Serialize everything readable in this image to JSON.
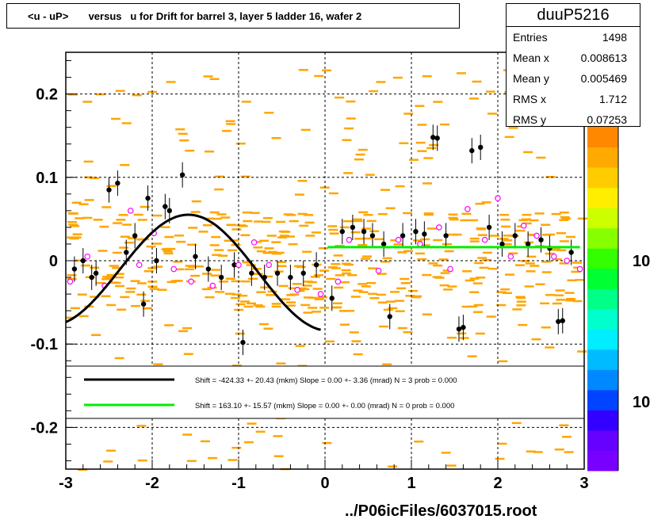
{
  "title": "<u - uP>       versus   u for Drift for barrel 3, layer 5 ladder 16, wafer 2",
  "stats": {
    "name": "duuP5216",
    "rows": [
      {
        "label": "Entries",
        "value": "1498"
      },
      {
        "label": "Mean x",
        "value": "0.008613"
      },
      {
        "label": "Mean y",
        "value": "0.005469"
      },
      {
        "label": "RMS x",
        "value": "1.712"
      },
      {
        "label": "RMS y",
        "value": "0.07253"
      }
    ]
  },
  "footer": "../P06icFiles/6037015.root",
  "colors": {
    "hist": "#ffa500",
    "profile": "#000000",
    "open_marker": "#ff00ff",
    "fit_left": "#000000",
    "fit_right": "#00ee00"
  },
  "chart_data": {
    "type": "scatter",
    "xlim": [
      -3,
      3
    ],
    "ylim": [
      -0.25,
      0.25
    ],
    "x_ticks": [
      "-3",
      "-2",
      "-1",
      "0",
      "1",
      "2",
      "3"
    ],
    "y_ticks": [
      "-0.2",
      "-0.1",
      "0",
      "0.1",
      "0.2"
    ],
    "grid": true,
    "palette_labels": [
      "10",
      "10"
    ],
    "legend": [
      {
        "text": "Shift =  -424.33 +- 20.43 (mkm) Slope =     0.00 +- 3.36 (mrad)  N = 3 prob = 0.000"
      },
      {
        "text": "Shift =   163.10 +- 15.57 (mkm) Slope =     0.00 +- 0.00 (mrad)  N = 0 prob = 0.000"
      }
    ],
    "profile_points": [
      {
        "x": -2.9,
        "y": -0.01
      },
      {
        "x": -2.8,
        "y": 0.0
      },
      {
        "x": -2.7,
        "y": -0.02
      },
      {
        "x": -2.65,
        "y": -0.015
      },
      {
        "x": -2.5,
        "y": 0.085
      },
      {
        "x": -2.4,
        "y": 0.093
      },
      {
        "x": -2.3,
        "y": 0.01
      },
      {
        "x": -2.2,
        "y": 0.03
      },
      {
        "x": -2.1,
        "y": -0.052
      },
      {
        "x": -2.05,
        "y": 0.075
      },
      {
        "x": -1.95,
        "y": 0.0
      },
      {
        "x": -1.85,
        "y": 0.065
      },
      {
        "x": -1.8,
        "y": 0.06
      },
      {
        "x": -1.65,
        "y": 0.103
      },
      {
        "x": -1.5,
        "y": 0.005
      },
      {
        "x": -1.35,
        "y": -0.01
      },
      {
        "x": -1.2,
        "y": -0.02
      },
      {
        "x": -1.05,
        "y": -0.005
      },
      {
        "x": -0.95,
        "y": -0.098
      },
      {
        "x": -0.85,
        "y": -0.015
      },
      {
        "x": -0.7,
        "y": -0.02
      },
      {
        "x": -0.55,
        "y": -0.015
      },
      {
        "x": -0.4,
        "y": -0.02
      },
      {
        "x": -0.25,
        "y": -0.015
      },
      {
        "x": -0.1,
        "y": -0.005
      },
      {
        "x": 0.08,
        "y": -0.045
      },
      {
        "x": 0.2,
        "y": 0.035
      },
      {
        "x": 0.32,
        "y": 0.04
      },
      {
        "x": 0.45,
        "y": 0.035
      },
      {
        "x": 0.55,
        "y": 0.03
      },
      {
        "x": 0.68,
        "y": 0.02
      },
      {
        "x": 0.75,
        "y": -0.067
      },
      {
        "x": 0.9,
        "y": 0.03
      },
      {
        "x": 1.05,
        "y": 0.035
      },
      {
        "x": 1.15,
        "y": 0.032
      },
      {
        "x": 1.25,
        "y": 0.148
      },
      {
        "x": 1.3,
        "y": 0.147
      },
      {
        "x": 1.4,
        "y": 0.03
      },
      {
        "x": 1.55,
        "y": -0.082
      },
      {
        "x": 1.6,
        "y": -0.08
      },
      {
        "x": 1.7,
        "y": 0.132
      },
      {
        "x": 1.8,
        "y": 0.136
      },
      {
        "x": 1.9,
        "y": 0.04
      },
      {
        "x": 2.05,
        "y": 0.02
      },
      {
        "x": 2.2,
        "y": 0.03
      },
      {
        "x": 2.35,
        "y": 0.02
      },
      {
        "x": 2.5,
        "y": 0.025
      },
      {
        "x": 2.6,
        "y": 0.015
      },
      {
        "x": 2.7,
        "y": -0.073
      },
      {
        "x": 2.75,
        "y": -0.072
      },
      {
        "x": 2.85,
        "y": 0.01
      }
    ],
    "open_points": [
      {
        "x": -2.95,
        "y": -0.025
      },
      {
        "x": -2.75,
        "y": 0.005
      },
      {
        "x": -2.55,
        "y": -0.03
      },
      {
        "x": -2.25,
        "y": 0.06
      },
      {
        "x": -2.15,
        "y": -0.005
      },
      {
        "x": -1.98,
        "y": 0.033
      },
      {
        "x": -1.75,
        "y": -0.01
      },
      {
        "x": -1.55,
        "y": -0.025
      },
      {
        "x": -1.3,
        "y": -0.03
      },
      {
        "x": -1.0,
        "y": -0.005
      },
      {
        "x": -0.82,
        "y": 0.022
      },
      {
        "x": -0.65,
        "y": -0.005
      },
      {
        "x": -0.32,
        "y": -0.035
      },
      {
        "x": -0.05,
        "y": -0.04
      },
      {
        "x": 0.15,
        "y": -0.025
      },
      {
        "x": 0.28,
        "y": 0.025
      },
      {
        "x": 0.62,
        "y": -0.012
      },
      {
        "x": 0.85,
        "y": 0.025
      },
      {
        "x": 1.1,
        "y": 0.02
      },
      {
        "x": 1.32,
        "y": 0.04
      },
      {
        "x": 1.45,
        "y": -0.01
      },
      {
        "x": 1.65,
        "y": 0.062
      },
      {
        "x": 1.85,
        "y": 0.025
      },
      {
        "x": 2.0,
        "y": 0.075
      },
      {
        "x": 2.15,
        "y": 0.005
      },
      {
        "x": 2.3,
        "y": 0.042
      },
      {
        "x": 2.45,
        "y": 0.03
      },
      {
        "x": 2.65,
        "y": 0.005
      },
      {
        "x": 2.8,
        "y": 0.0
      },
      {
        "x": 2.95,
        "y": -0.01
      }
    ],
    "fit_left": {
      "x_range": [
        -3,
        -0.05
      ]
    },
    "fit_right": {
      "x_range": [
        0.03,
        2.95
      ],
      "y": 0.0163
    }
  }
}
